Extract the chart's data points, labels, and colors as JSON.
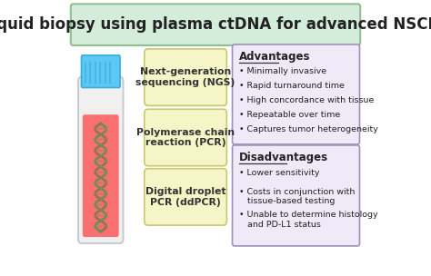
{
  "title": "Liquid biopsy using plasma ctDNA for advanced NSCLC",
  "title_bg": "#d4edda",
  "title_fontsize": 12,
  "bg_color": "#ffffff",
  "methods": [
    "Next-generation\nsequencing (NGS)",
    "Polymerase chain\nreaction (PCR)",
    "Digital droplet\nPCR (ddPCR)"
  ],
  "method_box_color": "#f5f5c8",
  "method_box_edge": "#c8c870",
  "advantages_title": "Advantages",
  "advantages": [
    "• Minimally invasive",
    "• Rapid turnaround time",
    "• High concordance with tissue",
    "• Repeatable over time",
    "• Captures tumor heterogeneity"
  ],
  "disadvantages_title": "Disadvantages",
  "disadvantages": [
    "• Lower sensitivity",
    "• Costs in conjunction with\n   tissue-based testing",
    "• Unable to determine histology\n   and PD-L1 status"
  ],
  "adv_box_color": "#f0eaf8",
  "adv_box_edge": "#a090b8",
  "dis_box_color": "#f0eaf8",
  "dis_box_edge": "#a090b8",
  "tube_body_color": "#f0f0f0",
  "tube_liquid_color": "#f87070",
  "tube_cap_color": "#5bc8f5",
  "tube_outline": "#cccccc",
  "dna_color1": "#8B7355",
  "dna_color2": "#6B8E4E"
}
